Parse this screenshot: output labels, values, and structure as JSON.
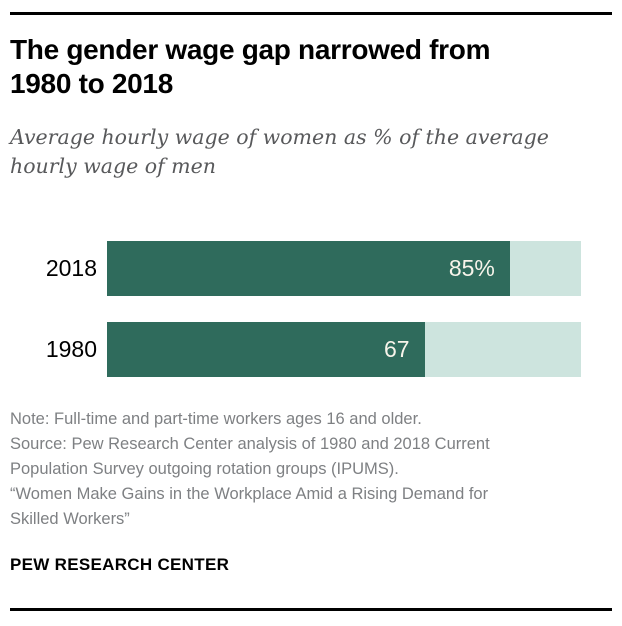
{
  "header": {
    "title_lines": [
      "The gender wage gap narrowed from",
      "1980 to 2018"
    ],
    "subtitle_lines": [
      "Average hourly wage of women as % of the average",
      "hourly wage of men"
    ]
  },
  "chart_data": {
    "type": "bar",
    "orientation": "horizontal",
    "title": "The gender wage gap narrowed from 1980 to 2018",
    "subtitle": "Average hourly wage of women as % of the average hourly wage of men",
    "categories": [
      "2018",
      "1980"
    ],
    "values": [
      85,
      67
    ],
    "value_labels": [
      "85%",
      "67"
    ],
    "xlim": [
      0,
      100
    ],
    "grid": false,
    "legend": false,
    "value_label_position": "inside-end",
    "bar_color": "#2f6b5c",
    "track_color": "#cde4de"
  },
  "footer": {
    "note_lines": [
      "Note: Full-time and part-time workers ages 16 and older.",
      "Source: Pew Research Center analysis of 1980 and 2018 Current",
      "Population Survey outgoing rotation groups (IPUMS).",
      "“Women Make Gains in the Workplace Amid a Rising Demand for",
      "Skilled Workers”"
    ],
    "brand": "PEW RESEARCH CENTER"
  },
  "colors": {
    "bar_green": "#2f6b5c",
    "track_mint": "#cde4de",
    "subtitle_gray": "#58595b",
    "note_gray": "#7e8083",
    "rule_black": "#000000",
    "value_label_ivory": "#f7f4ea"
  }
}
